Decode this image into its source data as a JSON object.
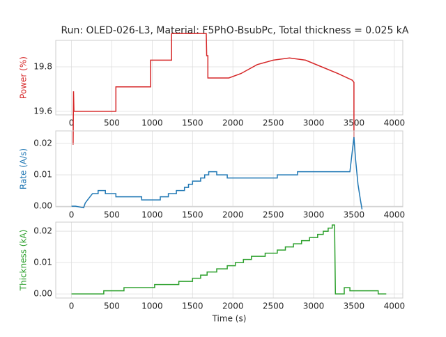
{
  "chart_data": [
    {
      "type": "line",
      "title": "Run: OLED-026-L3, Material: F5PhO-BsubPc, Total thickness = 0.025 kA",
      "ylabel": "Power (%)",
      "grid": true,
      "xlim": [
        -195,
        4105
      ],
      "xticks": [
        0,
        500,
        1000,
        1500,
        2000,
        2500,
        3000,
        3500,
        4000
      ],
      "ylim": [
        19.584,
        19.919
      ],
      "yticks": [
        19.6,
        19.8
      ],
      "series": [
        {
          "name": "Power",
          "color": "#d62728",
          "x": [
            20,
            25,
            30,
            550,
            550,
            980,
            980,
            1240,
            1240,
            1670,
            1675,
            1690,
            1690,
            1950,
            2100,
            2300,
            2500,
            2700,
            2900,
            3100,
            3300,
            3480,
            3500,
            3500
          ],
          "values": [
            19.45,
            19.69,
            19.6,
            19.6,
            19.71,
            19.71,
            19.83,
            19.83,
            19.95,
            19.95,
            19.85,
            19.85,
            19.75,
            19.75,
            19.77,
            19.81,
            19.83,
            19.84,
            19.83,
            19.8,
            19.77,
            19.74,
            19.73,
            19.45
          ]
        }
      ]
    },
    {
      "type": "line",
      "ylabel": "Rate (A/s)",
      "grid": true,
      "xlim": [
        -195,
        4105
      ],
      "xticks": [
        0,
        500,
        1000,
        1500,
        2000,
        2500,
        3000,
        3500,
        4000
      ],
      "ylim": [
        -0.0002,
        0.024
      ],
      "yticks": [
        {
          "value": 0,
          "label": "0.00"
        },
        0.01,
        0.02
      ],
      "series": [
        {
          "name": "Rate",
          "color": "#1f77b4",
          "x": [
            0,
            50,
            150,
            170,
            200,
            230,
            260,
            330,
            330,
            420,
            420,
            550,
            550,
            870,
            870,
            1100,
            1100,
            1200,
            1200,
            1300,
            1300,
            1400,
            1400,
            1450,
            1450,
            1500,
            1500,
            1600,
            1600,
            1650,
            1650,
            1700,
            1700,
            1800,
            1800,
            1930,
            1930,
            2550,
            2550,
            2800,
            2800,
            3450,
            3500,
            3520,
            3550,
            3580,
            3600
          ],
          "values": [
            0,
            0,
            -0.0005,
            0.001,
            0.002,
            0.003,
            0.004,
            0.004,
            0.005,
            0.005,
            0.004,
            0.004,
            0.003,
            0.003,
            0.002,
            0.002,
            0.003,
            0.003,
            0.004,
            0.004,
            0.005,
            0.005,
            0.006,
            0.006,
            0.007,
            0.007,
            0.008,
            0.008,
            0.009,
            0.009,
            0.01,
            0.01,
            0.011,
            0.011,
            0.01,
            0.01,
            0.009,
            0.009,
            0.01,
            0.01,
            0.011,
            0.011,
            0.022,
            0.015,
            0.007,
            0.002,
            -0.001
          ]
        }
      ]
    },
    {
      "type": "line",
      "ylabel": "Thickness (kA)",
      "xlabel": "Time (s)",
      "grid": true,
      "xlim": [
        -195,
        4105
      ],
      "xticks": [
        0,
        500,
        1000,
        1500,
        2000,
        2500,
        3000,
        3500,
        4000
      ],
      "ylim": [
        -0.0013,
        0.0229
      ],
      "yticks": [
        {
          "value": 0,
          "label": "0.00"
        },
        0.01,
        0.02
      ],
      "series": [
        {
          "name": "Thickness",
          "color": "#2ca02c",
          "x": [
            0,
            400,
            400,
            650,
            650,
            1030,
            1030,
            1330,
            1330,
            1500,
            1500,
            1600,
            1600,
            1680,
            1680,
            1800,
            1800,
            1930,
            1930,
            2030,
            2030,
            2130,
            2130,
            2230,
            2230,
            2400,
            2400,
            2550,
            2550,
            2650,
            2650,
            2750,
            2750,
            2850,
            2850,
            2950,
            2950,
            3050,
            3050,
            3120,
            3120,
            3180,
            3180,
            3230,
            3230,
            3260,
            3270,
            3380,
            3380,
            3450,
            3450,
            3520,
            3520,
            3800,
            3800,
            3900
          ],
          "values": [
            0,
            0,
            0.001,
            0.001,
            0.002,
            0.002,
            0.003,
            0.003,
            0.004,
            0.004,
            0.005,
            0.005,
            0.006,
            0.006,
            0.007,
            0.007,
            0.008,
            0.008,
            0.009,
            0.009,
            0.01,
            0.01,
            0.011,
            0.011,
            0.012,
            0.012,
            0.013,
            0.013,
            0.014,
            0.014,
            0.015,
            0.015,
            0.016,
            0.016,
            0.017,
            0.017,
            0.018,
            0.018,
            0.019,
            0.019,
            0.02,
            0.02,
            0.021,
            0.021,
            0.022,
            0.022,
            0,
            0,
            0.002,
            0.002,
            0.001,
            0.001,
            0.001,
            0.001,
            0,
            0
          ]
        }
      ]
    }
  ]
}
